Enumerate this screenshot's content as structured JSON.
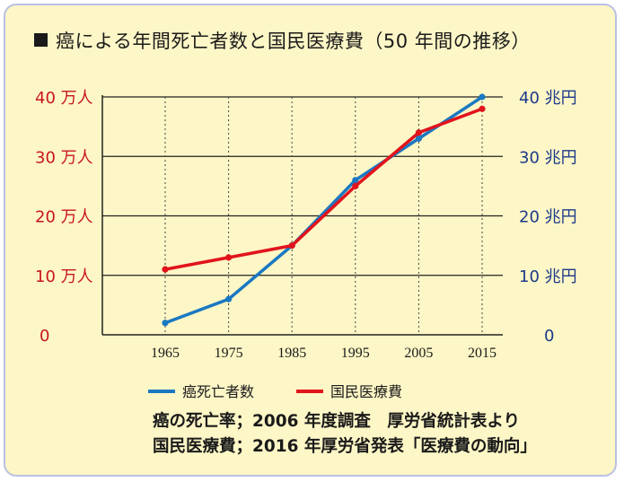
{
  "title": "癌による年間死亡者数と国民医療費（50 年間の推移）",
  "chart_data": {
    "type": "line",
    "x": [
      1965,
      1975,
      1985,
      1995,
      2005,
      2015
    ],
    "left_axis": {
      "ticks": [
        "0",
        "10 万人",
        "20 万人",
        "30 万人",
        "40 万人"
      ],
      "values": [
        0,
        10,
        20,
        30,
        40
      ],
      "ylim": [
        0,
        40
      ],
      "color": "#c8161d"
    },
    "right_axis": {
      "ticks": [
        "0",
        "10 兆円",
        "20 兆円",
        "30 兆円",
        "40 兆円"
      ],
      "values": [
        0,
        10,
        20,
        30,
        40
      ],
      "ylim": [
        0,
        40
      ],
      "color": "#1c3a8a"
    },
    "series": [
      {
        "name": "癌死亡者数",
        "axis": "left",
        "color": "#1a78c2",
        "values": [
          2.0,
          6.0,
          15.0,
          26.0,
          33.0,
          40.0
        ]
      },
      {
        "name": "国民医療費",
        "axis": "right",
        "color": "#e1141c",
        "values": [
          11.0,
          13.0,
          15.0,
          25.0,
          34.0,
          38.0
        ]
      }
    ],
    "grid": {
      "horizontal": true,
      "vertical_dotted": true
    },
    "legend": "bottom"
  },
  "notes": [
    "癌の死亡率；2006 年度調査　厚労省統計表より",
    "国民医療費；2016 年厚労省発表「医療費の動向」"
  ]
}
